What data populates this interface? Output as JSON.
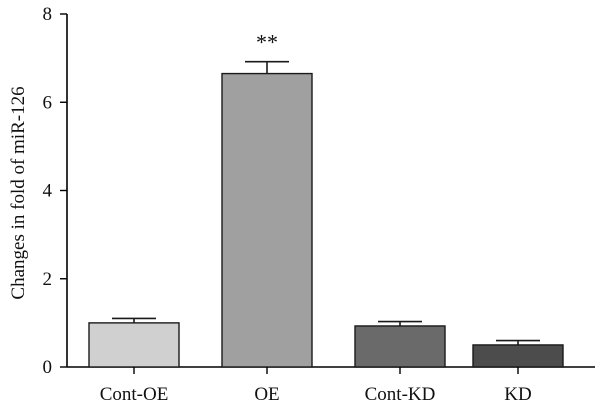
{
  "chart_data": {
    "type": "bar",
    "categories": [
      "Cont-OE",
      "OE",
      "Cont-KD",
      "KD"
    ],
    "values": [
      1.0,
      6.65,
      0.93,
      0.5
    ],
    "errors": [
      0.1,
      0.27,
      0.1,
      0.1
    ],
    "colors": [
      "#d0d0d0",
      "#a0a0a0",
      "#6a6a6a",
      "#4c4c4c"
    ],
    "annotations": [
      "",
      "**",
      "",
      ""
    ],
    "title": "",
    "xlabel": "",
    "ylabel": "Changes in fold of miR-126",
    "ylim": [
      0,
      8
    ],
    "yticks": [
      0,
      2,
      4,
      6,
      8
    ],
    "grid": false
  }
}
